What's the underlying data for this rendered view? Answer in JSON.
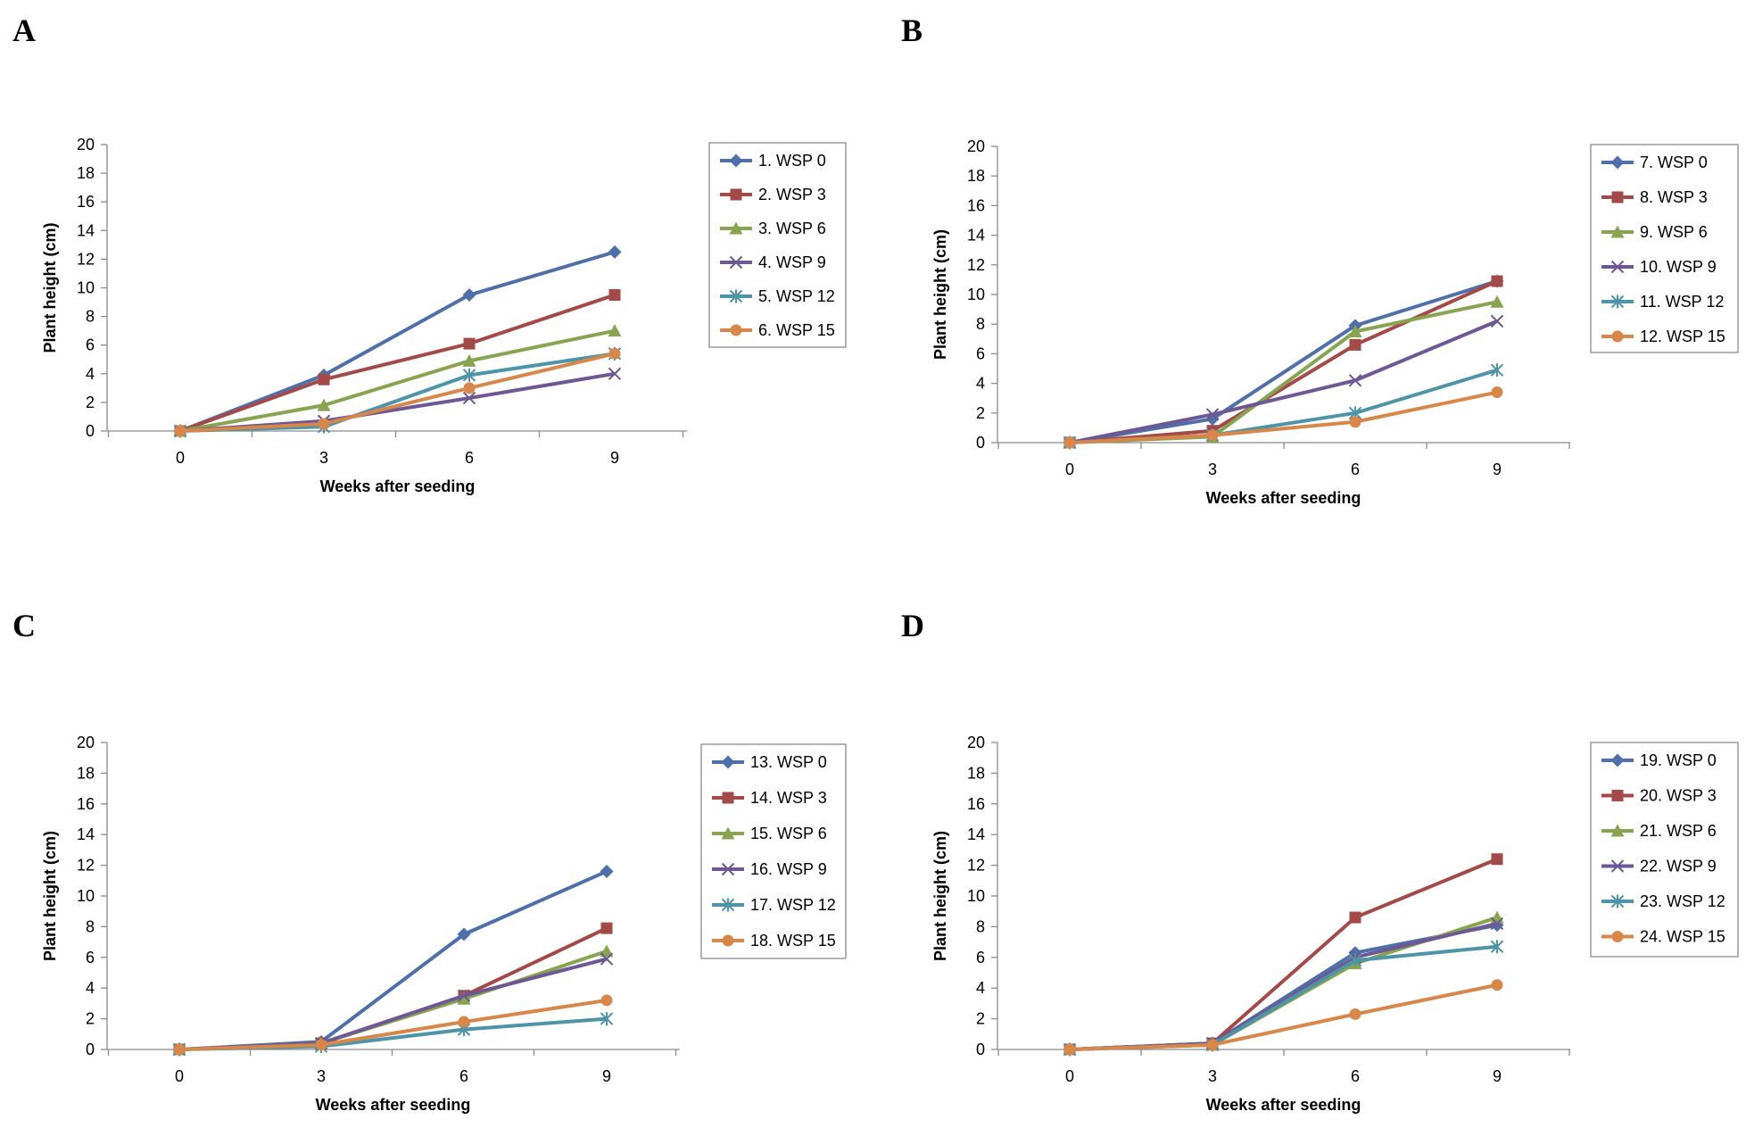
{
  "chart_data": [
    {
      "panel": "A",
      "type": "line",
      "x": [
        0,
        3,
        6,
        9
      ],
      "xlabel": "Weeks after seeding",
      "ylabel": "Plant  height (cm)",
      "ylim": [
        0,
        20
      ],
      "yticks": [
        0,
        2,
        4,
        6,
        8,
        10,
        12,
        14,
        16,
        18,
        20
      ],
      "legend_position": "right",
      "series": [
        {
          "name": "1. WSP 0",
          "color": "#4f6fa8",
          "marker": "diamond",
          "values": [
            0,
            3.9,
            9.5,
            12.5
          ]
        },
        {
          "name": "2. WSP 3",
          "color": "#a34a48",
          "marker": "square",
          "values": [
            0,
            3.6,
            6.1,
            9.5
          ]
        },
        {
          "name": "3. WSP 6",
          "color": "#89a450",
          "marker": "triangle",
          "values": [
            0,
            1.8,
            4.9,
            7.0
          ]
        },
        {
          "name": "4. WSP 9",
          "color": "#6d5893",
          "marker": "x",
          "values": [
            0,
            0.7,
            2.3,
            4.0
          ]
        },
        {
          "name": "5. WSP 12",
          "color": "#4d94a8",
          "marker": "asterisk",
          "values": [
            0,
            0.3,
            3.9,
            5.4
          ]
        },
        {
          "name": "6. WSP 15",
          "color": "#d8874a",
          "marker": "circle",
          "values": [
            0,
            0.5,
            3.0,
            5.4
          ]
        }
      ]
    },
    {
      "panel": "B",
      "type": "line",
      "x": [
        0,
        3,
        6,
        9
      ],
      "xlabel": "Weeks after seeding",
      "ylabel": "Plant  height (cm)",
      "ylim": [
        0,
        20
      ],
      "yticks": [
        0,
        2,
        4,
        6,
        8,
        10,
        12,
        14,
        16,
        18,
        20
      ],
      "legend_position": "right",
      "series": [
        {
          "name": "7. WSP 0",
          "color": "#4f6fa8",
          "marker": "diamond",
          "values": [
            0,
            1.6,
            7.9,
            10.9
          ]
        },
        {
          "name": "8. WSP 3",
          "color": "#a34a48",
          "marker": "square",
          "values": [
            0,
            0.8,
            6.6,
            10.9
          ]
        },
        {
          "name": "9. WSP 6",
          "color": "#89a450",
          "marker": "triangle",
          "values": [
            0,
            0.4,
            7.5,
            9.5
          ]
        },
        {
          "name": "10. WSP 9",
          "color": "#6d5893",
          "marker": "x",
          "values": [
            0,
            1.9,
            4.2,
            8.2
          ]
        },
        {
          "name": "11. WSP 12",
          "color": "#4d94a8",
          "marker": "asterisk",
          "values": [
            0,
            0.5,
            2.0,
            4.9
          ]
        },
        {
          "name": "12. WSP 15",
          "color": "#d8874a",
          "marker": "circle",
          "values": [
            0,
            0.5,
            1.4,
            3.4
          ]
        }
      ]
    },
    {
      "panel": "C",
      "type": "line",
      "x": [
        0,
        3,
        6,
        9
      ],
      "xlabel": "Weeks after seeding",
      "ylabel": "Plant  height (cm)",
      "ylim": [
        0,
        20
      ],
      "yticks": [
        0,
        2,
        4,
        6,
        8,
        10,
        12,
        14,
        16,
        18,
        20
      ],
      "legend_position": "right",
      "series": [
        {
          "name": "13. WSP 0",
          "color": "#4f6fa8",
          "marker": "diamond",
          "values": [
            0,
            0.5,
            7.5,
            11.6
          ]
        },
        {
          "name": "14. WSP 3",
          "color": "#a34a48",
          "marker": "square",
          "values": [
            0,
            0.4,
            3.5,
            7.9
          ]
        },
        {
          "name": "15. WSP 6",
          "color": "#89a450",
          "marker": "triangle",
          "values": [
            0,
            0.4,
            3.3,
            6.4
          ]
        },
        {
          "name": "16. WSP 9",
          "color": "#6d5893",
          "marker": "x",
          "values": [
            0,
            0.4,
            3.5,
            5.9
          ]
        },
        {
          "name": "17. WSP 12",
          "color": "#4d94a8",
          "marker": "asterisk",
          "values": [
            0,
            0.2,
            1.3,
            2.0
          ]
        },
        {
          "name": "18. WSP 15",
          "color": "#d8874a",
          "marker": "circle",
          "values": [
            0,
            0.3,
            1.8,
            3.2
          ]
        }
      ]
    },
    {
      "panel": "D",
      "type": "line",
      "x": [
        0,
        3,
        6,
        9
      ],
      "xlabel": "Weeks after seeding",
      "ylabel": "Plant  height (cm)",
      "ylim": [
        0,
        20
      ],
      "yticks": [
        0,
        2,
        4,
        6,
        8,
        10,
        12,
        14,
        16,
        18,
        20
      ],
      "legend_position": "right",
      "series": [
        {
          "name": "19. WSP 0",
          "color": "#4f6fa8",
          "marker": "diamond",
          "values": [
            0,
            0.4,
            6.3,
            8.1
          ]
        },
        {
          "name": "20. WSP 3",
          "color": "#a34a48",
          "marker": "square",
          "values": [
            0,
            0.4,
            8.6,
            12.4
          ]
        },
        {
          "name": "21. WSP 6",
          "color": "#89a450",
          "marker": "triangle",
          "values": [
            0,
            0.3,
            5.6,
            8.6
          ]
        },
        {
          "name": "22. WSP 9",
          "color": "#6d5893",
          "marker": "x",
          "values": [
            0,
            0.4,
            6.0,
            8.2
          ]
        },
        {
          "name": "23. WSP 12",
          "color": "#4d94a8",
          "marker": "asterisk",
          "values": [
            0,
            0.3,
            5.8,
            6.7
          ]
        },
        {
          "name": "24. WSP 15",
          "color": "#d8874a",
          "marker": "circle",
          "values": [
            0,
            0.3,
            2.3,
            4.2
          ]
        }
      ]
    }
  ]
}
